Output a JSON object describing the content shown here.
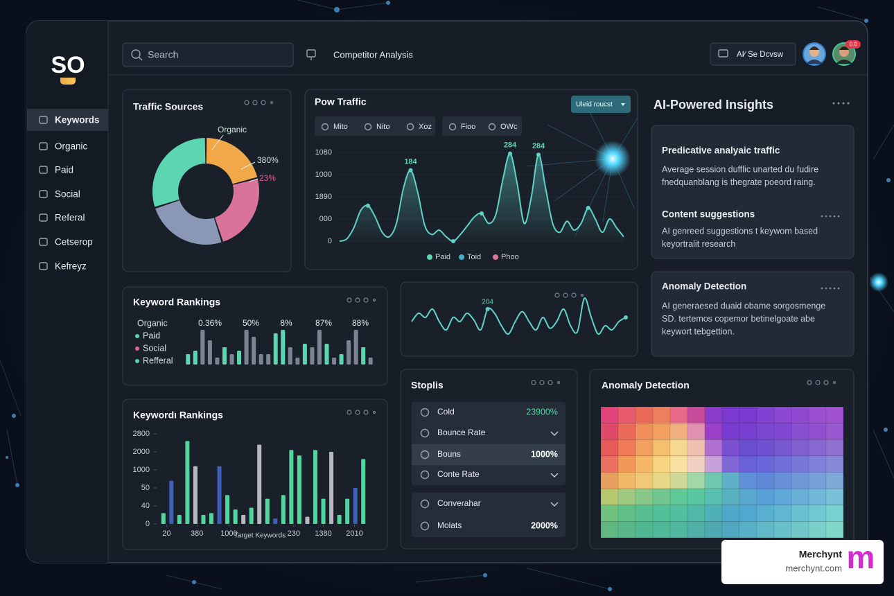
{
  "sidebar": {
    "logo": "SO",
    "nav": [
      "Keywords",
      "Organic",
      "Paid",
      "Social",
      "Referal",
      "Cetserop",
      "Kefreyz"
    ]
  },
  "topbar": {
    "search_placeholder": "Search",
    "page": "Competitor Analysis",
    "button": "AI⁄ Se Dcvsw",
    "badge": "0.0"
  },
  "chart_data": [
    {
      "type": "donut",
      "title": "Traffic Sources",
      "values": [
        21,
        24,
        25,
        30
      ],
      "colors": [
        "#f0a848",
        "#d9739a",
        "#8a97b5",
        "#5cd6b0"
      ],
      "annotations": [
        "Organic",
        "380%",
        "23%"
      ]
    },
    {
      "type": "line",
      "title": "Pow Traffic",
      "filters": [
        "Mito",
        "Nito",
        "Xoz",
        "Fioo",
        "OWc"
      ],
      "dropdown": "Uleid roucst",
      "values": [
        0,
        0.1,
        0.6,
        1.4,
        1.6,
        1.1,
        0.4,
        0.2,
        0.8,
        2.4,
        3.2,
        2.2,
        0.7,
        0.3,
        0.5,
        0.2,
        0,
        0.3,
        0.7,
        1.1,
        1.25,
        0.8,
        1.2,
        2.8,
        3.95,
        2.6,
        0.8,
        2.0,
        3.9,
        2.4,
        0.8,
        0.4,
        0.9,
        0.5,
        0.8,
        1.5,
        1.0,
        0.4,
        1.0,
        0.6,
        0.2
      ],
      "color": "#5fd3c8",
      "ylim": [
        0,
        4
      ],
      "yticks": [
        0,
        {
          "value": 1,
          "label": "000"
        },
        {
          "value": 2,
          "label": "1890"
        },
        {
          "value": 3,
          "label": "1000"
        },
        {
          "value": 4,
          "label": "1080"
        }
      ],
      "annotations": [
        "184",
        "284",
        "284"
      ],
      "legend": [
        {
          "name": "Paid",
          "color": "#5cd6b0"
        },
        {
          "name": "Toid",
          "color": "#3fb0c0"
        },
        {
          "name": "Phoo",
          "color": "#d9739a"
        }
      ]
    },
    {
      "type": "bar",
      "title": "Keyword Rankings",
      "values": [
        3,
        4,
        10,
        7,
        2,
        5,
        3,
        4,
        10,
        8,
        3,
        3,
        9,
        10,
        5,
        2,
        6,
        5,
        10,
        6,
        2,
        3,
        7,
        10,
        5,
        2
      ],
      "colors": [
        "#5cd6b0",
        "#5cd6b0",
        "#7c8494",
        "#7c8494",
        "#7c8494",
        "#5cd6b0",
        "#7c8494",
        "#5cd6b0",
        "#7c8494",
        "#7c8494",
        "#7c8494",
        "#7c8494",
        "#5cd6b0",
        "#5cd6b0",
        "#7c8494",
        "#7c8494",
        "#5cd6b0",
        "#7c8494",
        "#7c8494",
        "#5cd6b0",
        "#7c8494",
        "#5cd6b0",
        "#7c8494",
        "#7c8494",
        "#5cd6b0",
        "#7c8494"
      ],
      "legend": [
        {
          "name": "Organic"
        },
        {
          "name": "Paid",
          "color": "#5cd6b0"
        },
        {
          "name": "Social",
          "color": "#e0609a"
        },
        {
          "name": "Refferal",
          "color": "#5cd6b0"
        }
      ],
      "annotations": [
        "0.36%",
        "50%",
        "8%",
        "87%",
        "88%"
      ]
    },
    {
      "type": "line",
      "values": [
        2,
        3,
        2.5,
        3.5,
        2,
        1,
        2.5,
        2,
        3,
        2.2,
        1,
        3.5,
        3,
        1.5,
        0.5,
        2,
        3.2,
        2,
        1,
        2.5,
        1.2,
        2,
        3.5,
        1.5,
        0.8,
        4.8,
        2.5,
        0.5,
        1.5,
        1,
        2,
        2.5
      ],
      "color": "#5fd3c8",
      "annotations": [
        "204"
      ]
    },
    {
      "type": "bar",
      "title": "Keywordı Rankings",
      "values": [
        0.6,
        2.4,
        0.5,
        4.6,
        3.2,
        0.5,
        0.6,
        3.2,
        1.6,
        0.8,
        0.5,
        0.9,
        4.4,
        1.4,
        0.3,
        1.6,
        4.1,
        3.8,
        0.4,
        4.1,
        1.4,
        4.0,
        0.5,
        1.4,
        2.0,
        3.6
      ],
      "colors": [
        "#52d6a0",
        "#3f5fb8",
        "#52d6a0",
        "#52d6a0",
        "#b8b8be",
        "#52d6a0",
        "#52d6a0",
        "#3f5fb8",
        "#52d6a0",
        "#52d6a0",
        "#b8b8be",
        "#52d6a0",
        "#b8b8be",
        "#52d6a0",
        "#3f5fb8",
        "#52d6a0",
        "#52d6a0",
        "#52d6a0",
        "#b8b8be",
        "#52d6a0",
        "#52d6a0",
        "#b8b8be",
        "#52d6a0",
        "#52d6a0",
        "#3f5fb8",
        "#52d6a0"
      ],
      "ylim": [
        0,
        5
      ],
      "yticks": [
        0,
        {
          "value": 1,
          "label": "40"
        },
        {
          "value": 2,
          "label": "50"
        },
        {
          "value": 3,
          "label": "1000"
        },
        {
          "value": 4,
          "label": "2000"
        },
        {
          "value": 5,
          "label": "2800"
        }
      ],
      "xlim": [
        0,
        26
      ],
      "xticks": [
        {
          "value": 0.9,
          "label": "20"
        },
        {
          "value": 4.7,
          "label": "380"
        },
        {
          "value": 8.7,
          "label": "1000"
        },
        {
          "value": 16.8,
          "label": "230"
        },
        {
          "value": 20.5,
          "label": "1380"
        },
        {
          "value": 24.4,
          "label": "2010"
        }
      ],
      "xlabel": "Target Keywords"
    }
  ],
  "stats": {
    "title": "Stoplis",
    "rows": [
      {
        "label": "Cold",
        "value": "23900%"
      },
      {
        "label": "Bounce Rate"
      },
      {
        "label": "Bouns",
        "value": "1000%"
      },
      {
        "label": "Conte Rate"
      },
      {
        "label": "Converahar"
      },
      {
        "label": "Molats",
        "value": "2000%"
      }
    ]
  },
  "heatmap": {
    "title": "Anomaly Detection",
    "colors": [
      [
        "#e0457a",
        "#e85a6e",
        "#ea6a5a",
        "#ee7f5c",
        "#e8688a",
        "#c84a9a",
        "#8a3cc8",
        "#7a3ad0",
        "#7a3ad0",
        "#8040d0",
        "#8a48d0",
        "#9048d0",
        "#9a50d0",
        "#a050d0"
      ],
      [
        "#e04a6a",
        "#ea6a58",
        "#f0905a",
        "#f2a060",
        "#f0b080",
        "#e090b0",
        "#9a40c8",
        "#7a3cd0",
        "#7840d0",
        "#7a48d0",
        "#8048d0",
        "#8850d0",
        "#9050d0",
        "#9858d0"
      ],
      [
        "#e85a5a",
        "#f07a58",
        "#f2a060",
        "#f4c070",
        "#f6d890",
        "#f0c0b0",
        "#b070d0",
        "#7a50d0",
        "#6a50d0",
        "#7050d0",
        "#7858d0",
        "#8060d0",
        "#8868d0",
        "#9070d0"
      ],
      [
        "#ea7060",
        "#f09858",
        "#f4b868",
        "#f6d480",
        "#f8e0a0",
        "#f0d0c0",
        "#c8a0d8",
        "#8068d8",
        "#6a60d8",
        "#6a68d8",
        "#7070d8",
        "#7878d8",
        "#8080d8",
        "#8888d8"
      ],
      [
        "#e8a060",
        "#f0b868",
        "#f0c878",
        "#e8d888",
        "#d0d898",
        "#a0d8a8",
        "#70c8b0",
        "#60b0c8",
        "#6090d8",
        "#6088d8",
        "#6890d8",
        "#7098d8",
        "#78a0d8",
        "#80a8d8"
      ],
      [
        "#b8c870",
        "#a0c880",
        "#88c888",
        "#70c890",
        "#60c898",
        "#58c8a0",
        "#58c0b0",
        "#58b0c0",
        "#58a8d0",
        "#58a0d8",
        "#60a8d8",
        "#68b0d8",
        "#70b8d8",
        "#78c0d8"
      ],
      [
        "#70c080",
        "#60c088",
        "#58c090",
        "#50c098",
        "#50c0a0",
        "#50b8a8",
        "#50b0b8",
        "#50a8c8",
        "#50a8d0",
        "#58b0d0",
        "#60b8d0",
        "#68c0d0",
        "#70c8d0",
        "#78d0d0"
      ],
      [
        "#60b880",
        "#58b888",
        "#50b890",
        "#50b898",
        "#50b8a0",
        "#50b0a8",
        "#50a8b0",
        "#50a8c0",
        "#58b0c8",
        "#60b8c8",
        "#68c0c8",
        "#70c8c8",
        "#78d0c8",
        "#80d8c8"
      ]
    ]
  },
  "insights": {
    "title": "AI-Powered Insights",
    "cards": [
      {
        "items": [
          {
            "title": "Predicative analyaic traffic",
            "lines": [
              "Average session dufflic unarted du fudire",
              "fnedquanblang is thegrate poeord raing."
            ]
          },
          {
            "title": "Content suggestions",
            "lines": [
              "AI genreed suggestions t keywom based",
              "keyortralit research"
            ]
          }
        ]
      },
      {
        "items": [
          {
            "title": "Anomaly Detection",
            "lines": [
              "AI generaesed duaid obame sorgosmenge",
              "SD. tertemos copemor betinelgoate abe",
              "keywort tebgettion."
            ]
          }
        ]
      }
    ]
  },
  "watermark": {
    "name": "Merchynt",
    "url": "merchynt.com",
    "logo": "m"
  }
}
